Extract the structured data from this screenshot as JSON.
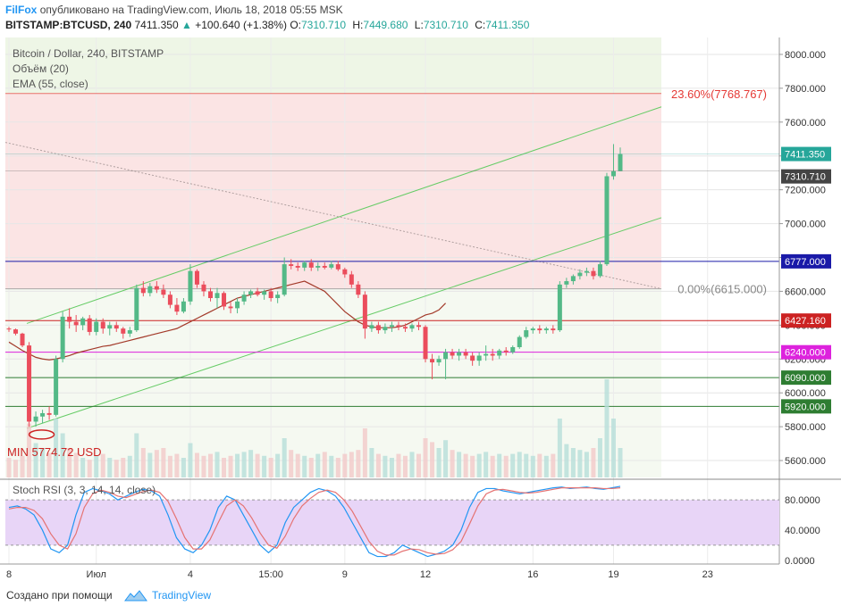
{
  "header": {
    "publisher": "FilFox",
    "published_text": "опубликовано на TradingView.com, Июль 18, 2018 05:55 MSK",
    "symbol": "BITSTAMP:BTCUSD, 240",
    "last": "7411.350",
    "change_arrow": "▲",
    "change": "+100.640 (+1.38%)",
    "o_label": "O:",
    "o_value": "7310.710",
    "h_label": "H:",
    "h_value": "7449.680",
    "l_label": "L:",
    "l_value": "7310.710",
    "c_label": "C:",
    "c_value": "7411.350"
  },
  "footer": {
    "created_with": "Создано при помощи",
    "brand": "TradingView"
  },
  "chart_data": [
    {
      "type": "candlestick",
      "legend": [
        "Bitcoin / Dollar, 240, BITSTAMP",
        "Объём (20)",
        "EMA (55, close)"
      ],
      "ylim": [
        5500,
        8100
      ],
      "y_ticks": [
        "8000.000",
        "7800.000",
        "7600.000",
        "7400.000",
        "7200.000",
        "7000.000",
        "6800.000",
        "6600.000",
        "6400.000",
        "6200.000",
        "6000.000",
        "5800.000",
        "5600.000"
      ],
      "x_ticks": [
        "8",
        "Июл",
        "4",
        "15:00",
        "9",
        "12",
        "16",
        "19",
        "23"
      ],
      "candles": [
        [
          6380,
          6390,
          6360,
          6375
        ],
        [
          6375,
          6380,
          6340,
          6350
        ],
        [
          6350,
          6355,
          6270,
          6280
        ],
        [
          6280,
          6300,
          5800,
          5830
        ],
        [
          5830,
          5890,
          5800,
          5860
        ],
        [
          5860,
          5900,
          5820,
          5880
        ],
        [
          5880,
          5920,
          5840,
          5870
        ],
        [
          5870,
          6220,
          5860,
          6200
        ],
        [
          6200,
          6480,
          6180,
          6450
        ],
        [
          6450,
          6500,
          6380,
          6420
        ],
        [
          6420,
          6460,
          6360,
          6400
        ],
        [
          6400,
          6450,
          6370,
          6440
        ],
        [
          6440,
          6460,
          6340,
          6360
        ],
        [
          6360,
          6440,
          6340,
          6420
        ],
        [
          6420,
          6440,
          6350,
          6380
        ],
        [
          6380,
          6420,
          6340,
          6400
        ],
        [
          6400,
          6420,
          6360,
          6380
        ],
        [
          6380,
          6390,
          6320,
          6350
        ],
        [
          6350,
          6390,
          6330,
          6370
        ],
        [
          6370,
          6640,
          6360,
          6620
        ],
        [
          6620,
          6660,
          6570,
          6590
        ],
        [
          6590,
          6650,
          6570,
          6630
        ],
        [
          6630,
          6660,
          6590,
          6610
        ],
        [
          6610,
          6640,
          6560,
          6580
        ],
        [
          6580,
          6600,
          6500,
          6520
        ],
        [
          6520,
          6560,
          6460,
          6480
        ],
        [
          6480,
          6560,
          6470,
          6540
        ],
        [
          6540,
          6760,
          6520,
          6720
        ],
        [
          6720,
          6730,
          6620,
          6640
        ],
        [
          6640,
          6660,
          6570,
          6600
        ],
        [
          6600,
          6620,
          6540,
          6560
        ],
        [
          6560,
          6620,
          6500,
          6590
        ],
        [
          6590,
          6600,
          6490,
          6510
        ],
        [
          6510,
          6540,
          6470,
          6500
        ],
        [
          6500,
          6560,
          6470,
          6540
        ],
        [
          6540,
          6600,
          6520,
          6580
        ],
        [
          6580,
          6610,
          6560,
          6600
        ],
        [
          6600,
          6620,
          6570,
          6580
        ],
        [
          6580,
          6610,
          6550,
          6600
        ],
        [
          6600,
          6620,
          6540,
          6560
        ],
        [
          6560,
          6600,
          6530,
          6580
        ],
        [
          6580,
          6800,
          6570,
          6760
        ],
        [
          6760,
          6790,
          6730,
          6750
        ],
        [
          6750,
          6770,
          6720,
          6740
        ],
        [
          6740,
          6780,
          6720,
          6770
        ],
        [
          6770,
          6790,
          6720,
          6740
        ],
        [
          6740,
          6770,
          6720,
          6750
        ],
        [
          6750,
          6770,
          6730,
          6740
        ],
        [
          6740,
          6780,
          6730,
          6760
        ],
        [
          6760,
          6780,
          6720,
          6730
        ],
        [
          6730,
          6740,
          6680,
          6700
        ],
        [
          6700,
          6720,
          6620,
          6640
        ],
        [
          6640,
          6660,
          6560,
          6580
        ],
        [
          6580,
          6600,
          6320,
          6380
        ],
        [
          6380,
          6420,
          6360,
          6400
        ],
        [
          6400,
          6420,
          6350,
          6370
        ],
        [
          6370,
          6410,
          6350,
          6390
        ],
        [
          6390,
          6420,
          6360,
          6400
        ],
        [
          6400,
          6420,
          6370,
          6390
        ],
        [
          6390,
          6410,
          6360,
          6380
        ],
        [
          6380,
          6410,
          6360,
          6400
        ],
        [
          6400,
          6420,
          6370,
          6390
        ],
        [
          6390,
          6400,
          6180,
          6200
        ],
        [
          6200,
          6230,
          6080,
          6180
        ],
        [
          6180,
          6220,
          6160,
          6200
        ],
        [
          6200,
          6260,
          6080,
          6240
        ],
        [
          6240,
          6260,
          6200,
          6220
        ],
        [
          6220,
          6260,
          6190,
          6240
        ],
        [
          6240,
          6260,
          6200,
          6220
        ],
        [
          6220,
          6240,
          6160,
          6190
        ],
        [
          6190,
          6240,
          6160,
          6220
        ],
        [
          6220,
          6280,
          6190,
          6230
        ],
        [
          6230,
          6260,
          6190,
          6220
        ],
        [
          6220,
          6260,
          6200,
          6250
        ],
        [
          6250,
          6270,
          6220,
          6240
        ],
        [
          6240,
          6280,
          6230,
          6270
        ],
        [
          6270,
          6340,
          6260,
          6330
        ],
        [
          6330,
          6390,
          6320,
          6370
        ],
        [
          6370,
          6390,
          6350,
          6380
        ],
        [
          6380,
          6400,
          6350,
          6370
        ],
        [
          6370,
          6390,
          6350,
          6380
        ],
        [
          6380,
          6400,
          6350,
          6370
        ],
        [
          6370,
          6660,
          6360,
          6640
        ],
        [
          6640,
          6680,
          6620,
          6660
        ],
        [
          6660,
          6700,
          6640,
          6690
        ],
        [
          6690,
          6730,
          6670,
          6710
        ],
        [
          6710,
          6740,
          6690,
          6720
        ],
        [
          6720,
          6740,
          6670,
          6690
        ],
        [
          6690,
          6780,
          6680,
          6760
        ],
        [
          6760,
          7300,
          6750,
          7280
        ],
        [
          7280,
          7470,
          7260,
          7310
        ],
        [
          7310.71,
          7449.68,
          7310.71,
          7411.35
        ]
      ],
      "ema55": [
        6300,
        6275,
        6250,
        6230,
        6210,
        6200,
        6195,
        6200,
        6210,
        6220,
        6235,
        6245,
        6255,
        6265,
        6275,
        6280,
        6290,
        6300,
        6310,
        6320,
        6330,
        6340,
        6350,
        6360,
        6370,
        6380,
        6400,
        6420,
        6440,
        6460,
        6480,
        6500,
        6520,
        6540,
        6560,
        6570,
        6580,
        6590,
        6600,
        6610,
        6620,
        6630,
        6640,
        6650,
        6660,
        6640,
        6620,
        6600,
        6560,
        6520,
        6480,
        6450,
        6420,
        6400,
        6390,
        6385,
        6385,
        6385,
        6390,
        6400,
        6420,
        6440,
        6460,
        6470,
        6490,
        6530
      ],
      "ema_start_index": 0,
      "volumes": [
        20,
        18,
        22,
        55,
        35,
        30,
        25,
        60,
        45,
        30,
        25,
        20,
        18,
        22,
        24,
        20,
        18,
        20,
        22,
        45,
        30,
        25,
        28,
        30,
        22,
        24,
        20,
        35,
        25,
        22,
        24,
        26,
        20,
        22,
        24,
        26,
        28,
        24,
        22,
        20,
        24,
        40,
        28,
        24,
        22,
        20,
        24,
        26,
        22,
        20,
        24,
        26,
        28,
        50,
        30,
        24,
        22,
        20,
        24,
        22,
        26,
        24,
        40,
        36,
        30,
        38,
        28,
        26,
        24,
        22,
        24,
        26,
        22,
        24,
        22,
        24,
        26,
        24,
        22,
        24,
        22,
        24,
        60,
        34,
        30,
        28,
        26,
        30,
        40,
        100,
        60,
        30
      ],
      "horizontal_levels": [
        {
          "value": 6777,
          "label": "6777.000",
          "color": "#1a1aa8"
        },
        {
          "value": 6427.16,
          "label": "6427.160",
          "color": "#cc2222"
        },
        {
          "value": 6240,
          "label": "6240.000",
          "color": "#dd22dd"
        },
        {
          "value": 6090,
          "label": "6090.000",
          "color": "#2e7d32"
        },
        {
          "value": 5920,
          "label": "5920.000",
          "color": "#2e7d32"
        }
      ],
      "price_labels": [
        {
          "value": 7411.35,
          "label": "7411.350",
          "color": "#26a69a"
        },
        {
          "value": 7310.71,
          "label": "7310.710",
          "color": "#444444"
        }
      ],
      "fib_levels": [
        {
          "label": "23.60%(7768.767)",
          "value": 7768.767,
          "color": "#e53935"
        },
        {
          "label": "0.00%(6615.000)",
          "value": 6615,
          "color": "#888888"
        }
      ],
      "annotations": [
        {
          "text": "MIN 5774.72 USD",
          "color": "#cc2222"
        }
      ]
    },
    {
      "type": "line",
      "title": "Stoch RSI (3, 3, 14, 14, close)",
      "ylim": [
        -5,
        105
      ],
      "y_ticks": [
        "80.0000",
        "40.0000",
        "0.0000"
      ],
      "band": [
        20,
        80
      ],
      "series": [
        {
          "color": "#2196f3",
          "values": [
            70,
            72,
            68,
            60,
            40,
            15,
            10,
            20,
            60,
            90,
            95,
            92,
            88,
            80,
            85,
            90,
            94,
            92,
            85,
            60,
            30,
            15,
            10,
            20,
            40,
            70,
            85,
            80,
            60,
            40,
            20,
            10,
            20,
            50,
            70,
            80,
            90,
            95,
            92,
            85,
            70,
            50,
            30,
            10,
            5,
            5,
            10,
            20,
            15,
            10,
            5,
            8,
            12,
            20,
            40,
            70,
            90,
            95,
            95,
            92,
            90,
            88,
            90,
            92,
            94,
            96,
            97,
            95,
            96,
            97,
            95,
            94,
            96,
            98
          ]
        },
        {
          "color": "#e57373",
          "values": [
            68,
            70,
            70,
            66,
            55,
            35,
            20,
            15,
            35,
            70,
            88,
            93,
            90,
            85,
            83,
            87,
            91,
            93,
            90,
            78,
            55,
            30,
            15,
            15,
            27,
            50,
            72,
            80,
            72,
            56,
            36,
            20,
            16,
            32,
            55,
            72,
            82,
            90,
            93,
            90,
            80,
            65,
            45,
            25,
            12,
            7,
            7,
            12,
            15,
            14,
            10,
            8,
            9,
            14,
            25,
            48,
            72,
            88,
            93,
            94,
            92,
            90,
            89,
            90,
            92,
            94,
            96,
            96,
            96,
            96,
            96,
            95,
            95,
            96
          ]
        }
      ]
    }
  ]
}
